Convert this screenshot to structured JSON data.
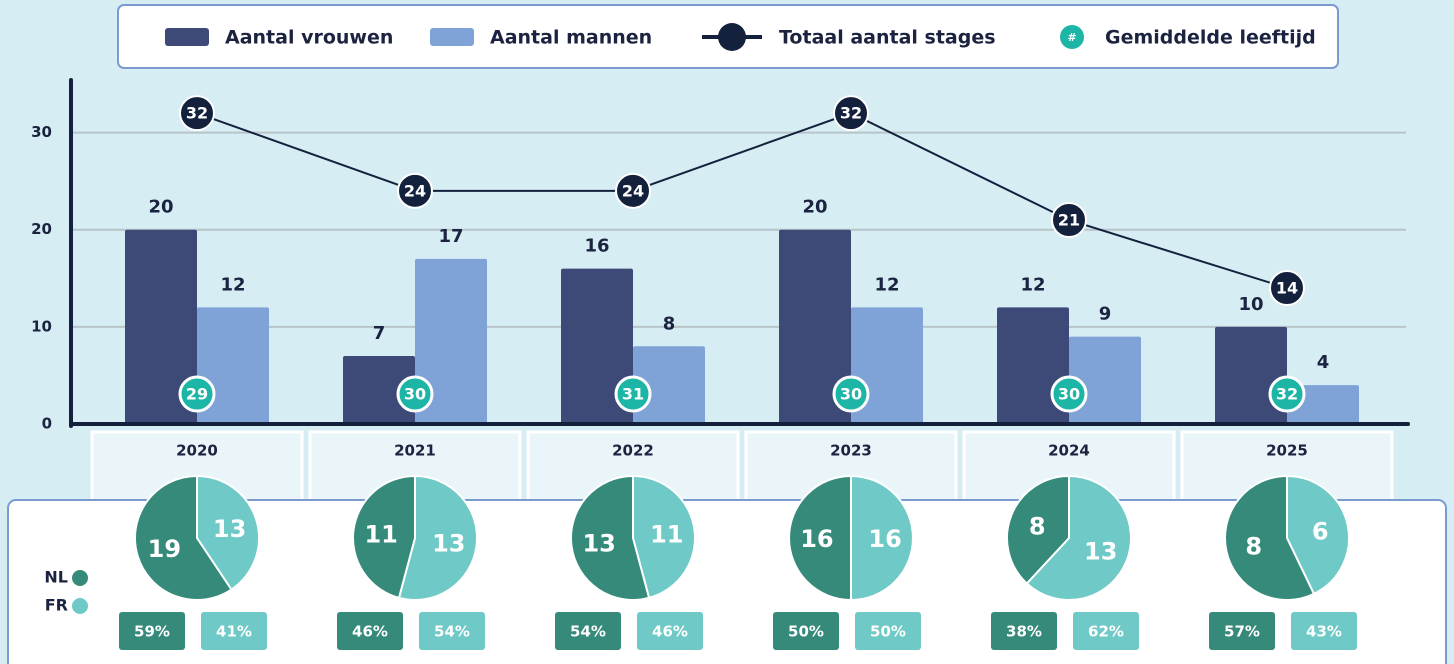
{
  "chart_data": [
    {
      "type": "bar",
      "categories": [
        "2020",
        "2021",
        "2022",
        "2023",
        "2024",
        "2025"
      ],
      "series": [
        {
          "name": "Aantal vrouwen",
          "color": "#3d4a78",
          "values": [
            20,
            7,
            16,
            20,
            12,
            10
          ]
        },
        {
          "name": "Aantal mannen",
          "color": "#7fa3d7",
          "values": [
            12,
            17,
            8,
            12,
            9,
            4
          ]
        },
        {
          "name": "Totaal aantal stages",
          "color": "#14213d",
          "type": "line",
          "values": [
            32,
            24,
            24,
            32,
            21,
            14
          ]
        },
        {
          "name": "Gemiddelde leeftijd",
          "color": "#1db5a6",
          "type": "badge",
          "marker": "#",
          "values": [
            29,
            30,
            31,
            30,
            30,
            32
          ]
        }
      ],
      "ylim": [
        0,
        35
      ],
      "yticks": [
        0,
        10,
        20,
        30
      ],
      "grid": true
    },
    {
      "type": "pie_grid",
      "categories": [
        "NL",
        "FR"
      ],
      "colors": [
        "#358a7a",
        "#6fc9c6"
      ],
      "pies": [
        {
          "title": "2020",
          "values": [
            19,
            13
          ],
          "shares": [
            59,
            41
          ],
          "share_labels": [
            "59%",
            "41%"
          ]
        },
        {
          "title": "2021",
          "values": [
            11,
            13
          ],
          "shares": [
            46,
            54
          ],
          "share_labels": [
            "46%",
            "54%"
          ]
        },
        {
          "title": "2022",
          "values": [
            13,
            11
          ],
          "shares": [
            54,
            46
          ],
          "share_labels": [
            "54%",
            "46%"
          ]
        },
        {
          "title": "2023",
          "values": [
            16,
            16
          ],
          "shares": [
            50,
            50
          ],
          "share_labels": [
            "50%",
            "50%"
          ]
        },
        {
          "title": "2024",
          "values": [
            8,
            13
          ],
          "shares": [
            38,
            62
          ],
          "share_labels": [
            "38%",
            "62%"
          ]
        },
        {
          "title": "2025",
          "values": [
            8,
            6
          ],
          "shares": [
            57,
            43
          ],
          "share_labels": [
            "57%",
            "43%"
          ]
        }
      ]
    }
  ]
}
